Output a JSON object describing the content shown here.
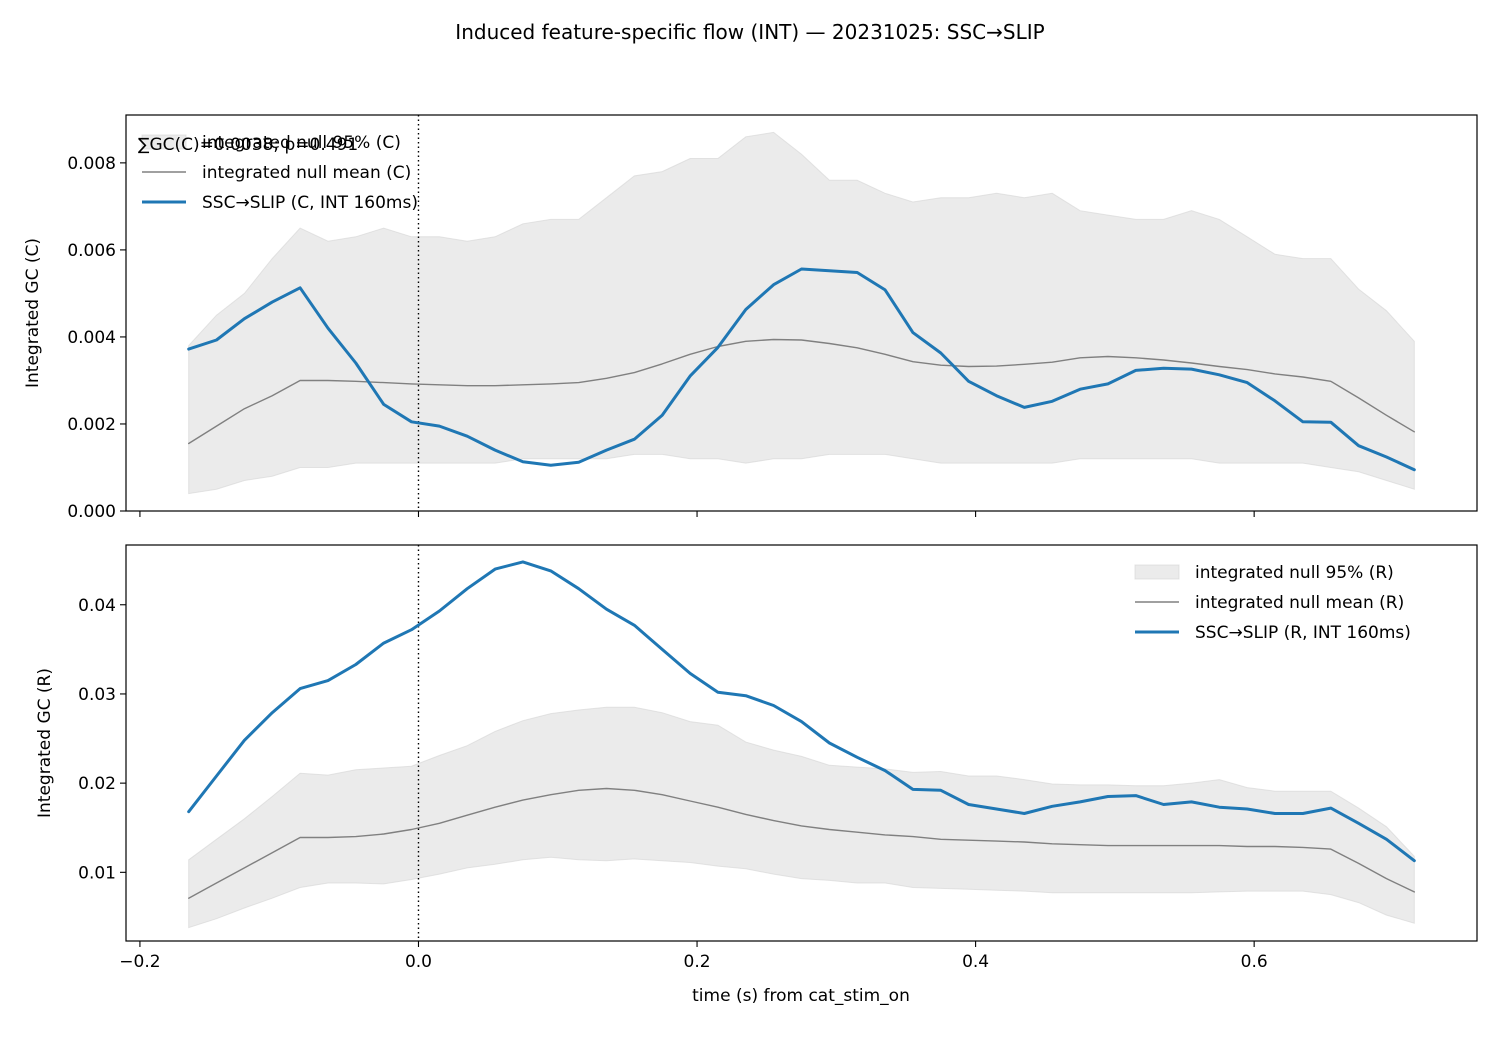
{
  "figure": {
    "suptitle": "Induced feature-specific flow (INT) — 20231025: SSC→SLIP",
    "xlabel": "time (s) from cat_stim_on"
  },
  "chart_data": [
    {
      "type": "line",
      "id": "panel-c",
      "ylabel": "Integrated GC (C)",
      "xlim": [
        -0.21,
        0.76
      ],
      "ylim": [
        0.0,
        0.0091
      ],
      "xticks": [
        -0.2,
        0.0,
        0.2,
        0.4,
        0.6
      ],
      "xtick_labels": [
        "",
        "",
        "",
        "",
        ""
      ],
      "yticks": [
        0.0,
        0.002,
        0.004,
        0.006,
        0.008
      ],
      "ytick_labels": [
        "0.000",
        "0.002",
        "0.004",
        "0.006",
        "0.008"
      ],
      "vline_x": 0.0,
      "grid": false,
      "legend_position": "upper-left",
      "annotation": "∑GC(C)=0.0038; p=0.491",
      "x": [
        -0.165,
        -0.145,
        -0.125,
        -0.105,
        -0.085,
        -0.065,
        -0.045,
        -0.025,
        -0.005,
        0.015,
        0.035,
        0.055,
        0.075,
        0.095,
        0.115,
        0.135,
        0.155,
        0.175,
        0.195,
        0.215,
        0.235,
        0.255,
        0.275,
        0.295,
        0.315,
        0.335,
        0.355,
        0.375,
        0.395,
        0.415,
        0.435,
        0.455,
        0.475,
        0.495,
        0.515,
        0.535,
        0.555,
        0.575,
        0.595,
        0.615,
        0.635,
        0.655,
        0.675,
        0.695,
        0.715
      ],
      "band": {
        "name": "integrated null 95% (C)",
        "color": "#d3d3d3",
        "upper": [
          0.0038,
          0.0045,
          0.005,
          0.0058,
          0.0065,
          0.0062,
          0.0063,
          0.0065,
          0.0063,
          0.0063,
          0.0062,
          0.0063,
          0.0066,
          0.0067,
          0.0067,
          0.0072,
          0.0077,
          0.0078,
          0.0081,
          0.0081,
          0.0086,
          0.0087,
          0.0082,
          0.0076,
          0.0076,
          0.0073,
          0.0071,
          0.0072,
          0.0072,
          0.0073,
          0.0072,
          0.0073,
          0.0069,
          0.0068,
          0.0067,
          0.0067,
          0.0069,
          0.0067,
          0.0063,
          0.0059,
          0.0058,
          0.0058,
          0.0051,
          0.0046,
          0.0039
        ],
        "lower": [
          0.0004,
          0.0005,
          0.0007,
          0.0008,
          0.001,
          0.001,
          0.0011,
          0.0011,
          0.0011,
          0.0011,
          0.0011,
          0.0011,
          0.0012,
          0.0012,
          0.0012,
          0.0012,
          0.0013,
          0.0013,
          0.0012,
          0.0012,
          0.0011,
          0.0012,
          0.0012,
          0.0013,
          0.0013,
          0.0013,
          0.0012,
          0.0011,
          0.0011,
          0.0011,
          0.0011,
          0.0011,
          0.0012,
          0.0012,
          0.0012,
          0.0012,
          0.0012,
          0.0011,
          0.0011,
          0.0011,
          0.0011,
          0.001,
          0.0009,
          0.0007,
          0.0005
        ]
      },
      "series": [
        {
          "name": "integrated null mean (C)",
          "color": "#808080",
          "width": 1.4,
          "values": [
            0.00155,
            0.00195,
            0.00235,
            0.00265,
            0.003,
            0.003,
            0.00298,
            0.00295,
            0.00292,
            0.0029,
            0.00288,
            0.00288,
            0.0029,
            0.00292,
            0.00295,
            0.00305,
            0.00318,
            0.00338,
            0.0036,
            0.00378,
            0.0039,
            0.00394,
            0.00393,
            0.00385,
            0.00375,
            0.0036,
            0.00343,
            0.00335,
            0.00332,
            0.00333,
            0.00337,
            0.00342,
            0.00352,
            0.00355,
            0.00352,
            0.00347,
            0.0034,
            0.00332,
            0.00325,
            0.00315,
            0.00308,
            0.00298,
            0.0026,
            0.0022,
            0.00182
          ]
        },
        {
          "name": "SSC→SLIP (C, INT 160ms)",
          "color": "#1f77b4",
          "width": 3,
          "values": [
            0.00372,
            0.00393,
            0.00442,
            0.0048,
            0.00513,
            0.0042,
            0.0034,
            0.00245,
            0.00205,
            0.00195,
            0.00172,
            0.0014,
            0.00113,
            0.00105,
            0.00112,
            0.0014,
            0.00165,
            0.0022,
            0.0031,
            0.00376,
            0.00463,
            0.0052,
            0.00556,
            0.00552,
            0.00548,
            0.00508,
            0.0041,
            0.00363,
            0.00298,
            0.00265,
            0.00238,
            0.00252,
            0.0028,
            0.00292,
            0.00323,
            0.00328,
            0.00326,
            0.00313,
            0.00295,
            0.00253,
            0.00205,
            0.00204,
            0.0015,
            0.00124,
            0.00095
          ]
        }
      ]
    },
    {
      "type": "line",
      "id": "panel-r",
      "ylabel": "Integrated GC (R)",
      "xlim": [
        -0.21,
        0.76
      ],
      "ylim": [
        0.0023,
        0.0467
      ],
      "xticks": [
        -0.2,
        0.0,
        0.2,
        0.4,
        0.6
      ],
      "xtick_labels": [
        "−0.2",
        "0.0",
        "0.2",
        "0.4",
        "0.6"
      ],
      "yticks": [
        0.01,
        0.02,
        0.03,
        0.04
      ],
      "ytick_labels": [
        "0.01",
        "0.02",
        "0.03",
        "0.04"
      ],
      "vline_x": 0.0,
      "grid": false,
      "legend_position": "upper-right",
      "x": [
        -0.165,
        -0.145,
        -0.125,
        -0.105,
        -0.085,
        -0.065,
        -0.045,
        -0.025,
        -0.005,
        0.015,
        0.035,
        0.055,
        0.075,
        0.095,
        0.115,
        0.135,
        0.155,
        0.175,
        0.195,
        0.215,
        0.235,
        0.255,
        0.275,
        0.295,
        0.315,
        0.335,
        0.355,
        0.375,
        0.395,
        0.415,
        0.435,
        0.455,
        0.475,
        0.495,
        0.515,
        0.535,
        0.555,
        0.575,
        0.595,
        0.615,
        0.635,
        0.655,
        0.675,
        0.695,
        0.715
      ],
      "band": {
        "name": "integrated null 95% (R)",
        "color": "#d3d3d3",
        "upper": [
          0.0114,
          0.0137,
          0.016,
          0.0185,
          0.0211,
          0.0209,
          0.0215,
          0.0217,
          0.0219,
          0.0231,
          0.0242,
          0.0258,
          0.027,
          0.0278,
          0.0282,
          0.0285,
          0.0285,
          0.0279,
          0.0269,
          0.0265,
          0.0246,
          0.0237,
          0.023,
          0.022,
          0.0218,
          0.0216,
          0.0212,
          0.0213,
          0.0208,
          0.0208,
          0.0204,
          0.0199,
          0.0198,
          0.0198,
          0.0197,
          0.0197,
          0.02,
          0.0204,
          0.0195,
          0.0191,
          0.0191,
          0.0191,
          0.0172,
          0.0151,
          0.0118
        ],
        "lower": [
          0.0038,
          0.0048,
          0.006,
          0.0071,
          0.0083,
          0.0088,
          0.0088,
          0.0087,
          0.0092,
          0.0098,
          0.0105,
          0.0109,
          0.0114,
          0.0117,
          0.0114,
          0.0113,
          0.0115,
          0.0113,
          0.0111,
          0.0107,
          0.0104,
          0.0098,
          0.0093,
          0.0091,
          0.0088,
          0.0088,
          0.0083,
          0.0082,
          0.0081,
          0.008,
          0.0079,
          0.0077,
          0.0077,
          0.0077,
          0.0077,
          0.0077,
          0.0077,
          0.0078,
          0.0079,
          0.0079,
          0.0079,
          0.0075,
          0.0066,
          0.0052,
          0.0043
        ]
      },
      "series": [
        {
          "name": "integrated null mean (R)",
          "color": "#808080",
          "width": 1.4,
          "values": [
            0.0071,
            0.0088,
            0.0105,
            0.0122,
            0.0139,
            0.0139,
            0.014,
            0.0143,
            0.0148,
            0.0155,
            0.0164,
            0.0173,
            0.0181,
            0.0187,
            0.0192,
            0.0194,
            0.0192,
            0.0187,
            0.018,
            0.0173,
            0.0165,
            0.0158,
            0.0152,
            0.0148,
            0.0145,
            0.0142,
            0.014,
            0.0137,
            0.0136,
            0.0135,
            0.0134,
            0.0132,
            0.0131,
            0.013,
            0.013,
            0.013,
            0.013,
            0.013,
            0.0129,
            0.0129,
            0.0128,
            0.0126,
            0.011,
            0.0093,
            0.0078
          ]
        },
        {
          "name": "SSC→SLIP (R, INT 160ms)",
          "color": "#1f77b4",
          "width": 3,
          "values": [
            0.0168,
            0.0208,
            0.0248,
            0.0279,
            0.0306,
            0.0315,
            0.0333,
            0.0357,
            0.0372,
            0.0393,
            0.0418,
            0.044,
            0.0448,
            0.0438,
            0.0418,
            0.0395,
            0.0377,
            0.035,
            0.0323,
            0.0302,
            0.0298,
            0.0287,
            0.0269,
            0.0245,
            0.0229,
            0.0214,
            0.0193,
            0.0192,
            0.0176,
            0.0171,
            0.0166,
            0.0174,
            0.0179,
            0.0185,
            0.0186,
            0.0176,
            0.0179,
            0.0173,
            0.0171,
            0.0166,
            0.0166,
            0.0172,
            0.0155,
            0.0137,
            0.0113
          ]
        }
      ]
    }
  ]
}
